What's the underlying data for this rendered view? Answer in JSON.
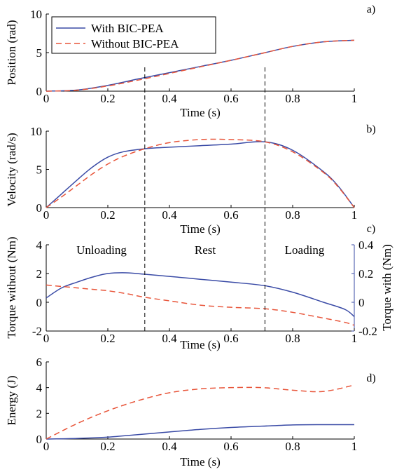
{
  "colors": {
    "with": "#3a4ba6",
    "without": "#e8553a",
    "axis": "#000000"
  },
  "annotations": {
    "region_labels": [
      "Unloading",
      "Rest",
      "Loading"
    ],
    "phase_boundaries_s": [
      0.32,
      0.71
    ]
  },
  "legend": {
    "with_label": "With BIC-PEA",
    "without_label": "Without BIC-PEA"
  },
  "chart_data": [
    {
      "type": "line",
      "panel_label": "a)",
      "xlabel": "Time (s)",
      "ylabel": "Position (rad)",
      "xlim": [
        0,
        1
      ],
      "ylim": [
        0,
        10
      ],
      "xticks": [
        0,
        0.2,
        0.4,
        0.6,
        0.8,
        1
      ],
      "xtick_labels": [
        "0",
        "0.2",
        "0.4",
        "0.6",
        "0.8",
        "1"
      ],
      "yticks": [
        0,
        5,
        10
      ],
      "ytick_labels": [
        "0",
        "5",
        "10"
      ],
      "x": [
        0,
        0.1,
        0.2,
        0.3,
        0.4,
        0.5,
        0.6,
        0.7,
        0.8,
        0.9,
        1.0
      ],
      "series": [
        {
          "name": "With BIC-PEA",
          "color_key": "with",
          "dashed": false,
          "values": [
            0,
            0.15,
            0.75,
            1.6,
            2.4,
            3.2,
            4.0,
            4.9,
            5.8,
            6.4,
            6.6
          ]
        },
        {
          "name": "Without BIC-PEA",
          "color_key": "without",
          "dashed": true,
          "values": [
            0,
            0.13,
            0.68,
            1.45,
            2.3,
            3.15,
            4.0,
            4.9,
            5.8,
            6.4,
            6.6
          ]
        }
      ]
    },
    {
      "type": "line",
      "panel_label": "b)",
      "xlabel": "Time (s)",
      "ylabel": "Velocity (rad/s)",
      "xlim": [
        0,
        1
      ],
      "ylim": [
        0,
        10
      ],
      "xticks": [
        0,
        0.2,
        0.4,
        0.6,
        0.8,
        1
      ],
      "xtick_labels": [
        "0",
        "0.2",
        "0.4",
        "0.6",
        "0.8",
        "1"
      ],
      "yticks": [
        0,
        5,
        10
      ],
      "ytick_labels": [
        "0",
        "5",
        "10"
      ],
      "x": [
        0,
        0.05,
        0.1,
        0.15,
        0.2,
        0.25,
        0.32,
        0.4,
        0.5,
        0.6,
        0.71,
        0.8,
        0.9,
        0.95,
        1.0
      ],
      "series": [
        {
          "name": "With BIC-PEA",
          "color_key": "with",
          "dashed": false,
          "values": [
            0,
            1.8,
            3.6,
            5.3,
            6.6,
            7.3,
            7.7,
            7.9,
            8.1,
            8.3,
            8.6,
            7.5,
            4.7,
            2.7,
            0
          ]
        },
        {
          "name": "Without BIC-PEA",
          "color_key": "without",
          "dashed": true,
          "values": [
            0,
            1.4,
            2.9,
            4.4,
            5.7,
            6.7,
            7.7,
            8.5,
            8.9,
            8.9,
            8.6,
            7.3,
            4.6,
            2.6,
            0
          ]
        }
      ]
    },
    {
      "type": "line",
      "panel_label": "c)",
      "xlabel": "Time (s)",
      "ylabel": "Torque without (Nm)",
      "ylabel_right": "Torque with (Nm)",
      "xlim": [
        0,
        1
      ],
      "ylim": [
        -2,
        4
      ],
      "ylim_right": [
        -0.2,
        0.4
      ],
      "xticks": [
        0,
        0.2,
        0.4,
        0.6,
        0.8,
        1
      ],
      "xtick_labels": [
        "0",
        "0.2",
        "0.4",
        "0.6",
        "0.8",
        "1"
      ],
      "yticks": [
        -2,
        0,
        2,
        4
      ],
      "ytick_labels": [
        "-2",
        "0",
        "2",
        "4"
      ],
      "yticks_right": [
        -0.2,
        0,
        0.2,
        0.4
      ],
      "ytick_labels_right": [
        "-0.2",
        "0",
        "0.2",
        "0.4"
      ],
      "x": [
        0,
        0.05,
        0.1,
        0.15,
        0.2,
        0.26,
        0.32,
        0.4,
        0.5,
        0.6,
        0.71,
        0.8,
        0.9,
        0.97,
        1.0
      ],
      "series": [
        {
          "name": "With BIC-PEA",
          "color_key": "with",
          "dashed": false,
          "axis": "right",
          "values": [
            0.03,
            0.1,
            0.14,
            0.175,
            0.2,
            0.205,
            0.195,
            0.18,
            0.16,
            0.14,
            0.115,
            0.07,
            0.0,
            -0.05,
            -0.1
          ]
        },
        {
          "name": "Without BIC-PEA",
          "color_key": "without",
          "dashed": true,
          "axis": "left",
          "values": [
            1.2,
            1.1,
            1.0,
            0.9,
            0.8,
            0.6,
            0.35,
            0.1,
            -0.2,
            -0.35,
            -0.45,
            -0.7,
            -1.1,
            -1.4,
            -1.6
          ]
        }
      ]
    },
    {
      "type": "line",
      "panel_label": "d)",
      "xlabel": "Time (s)",
      "ylabel": "Energy (J)",
      "xlim": [
        0,
        1
      ],
      "ylim": [
        0,
        6
      ],
      "xticks": [
        0,
        0.2,
        0.4,
        0.6,
        0.8,
        1
      ],
      "xtick_labels": [
        "0",
        "0.2",
        "0.4",
        "0.6",
        "0.8",
        "1"
      ],
      "yticks": [
        0,
        2,
        4,
        6
      ],
      "ytick_labels": [
        "0",
        "2",
        "4",
        "6"
      ],
      "x": [
        0,
        0.1,
        0.2,
        0.3,
        0.4,
        0.5,
        0.6,
        0.7,
        0.8,
        0.9,
        1.0
      ],
      "series": [
        {
          "name": "With BIC-PEA",
          "color_key": "with",
          "dashed": false,
          "values": [
            0,
            0.05,
            0.15,
            0.35,
            0.55,
            0.75,
            0.9,
            1.0,
            1.1,
            1.12,
            1.12
          ]
        },
        {
          "name": "Without BIC-PEA",
          "color_key": "without",
          "dashed": true,
          "values": [
            0,
            1.2,
            2.2,
            3.0,
            3.6,
            3.9,
            4.0,
            4.0,
            3.8,
            3.7,
            4.2
          ]
        }
      ]
    }
  ]
}
